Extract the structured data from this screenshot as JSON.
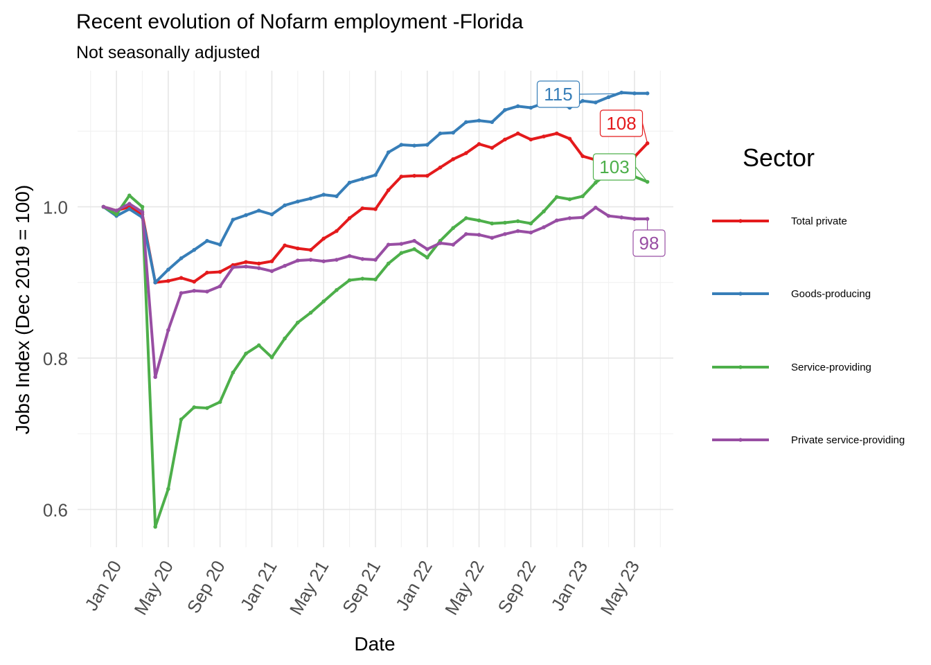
{
  "chart_data": {
    "type": "line",
    "title": "Recent evolution of Nofarm employment -Florida",
    "subtitle": "Not seasonally adjusted",
    "xlabel": "Date",
    "ylabel": "Jobs Index (Dec 2019 = 100)",
    "x_start": "2019-12",
    "x_end": "2023-06",
    "xlim": [
      "2019-10",
      "2023-08"
    ],
    "ylim": [
      0.55,
      1.18
    ],
    "x_ticks": [
      {
        "date": "2020-01",
        "label": "Jan 20"
      },
      {
        "date": "2020-05",
        "label": "May 20"
      },
      {
        "date": "2020-09",
        "label": "Sep 20"
      },
      {
        "date": "2021-01",
        "label": "Jan 21"
      },
      {
        "date": "2021-05",
        "label": "May 21"
      },
      {
        "date": "2021-09",
        "label": "Sep 21"
      },
      {
        "date": "2022-01",
        "label": "Jan 22"
      },
      {
        "date": "2022-05",
        "label": "May 22"
      },
      {
        "date": "2022-09",
        "label": "Sep 22"
      },
      {
        "date": "2023-01",
        "label": "Jan 23"
      },
      {
        "date": "2023-05",
        "label": "May 23"
      }
    ],
    "y_ticks": [
      {
        "value": 0.6,
        "label": "0.6"
      },
      {
        "value": 0.8,
        "label": "0.8"
      },
      {
        "value": 1.0,
        "label": "1.0"
      }
    ],
    "grid": true,
    "legend_title": "Sector",
    "legend_position": "right",
    "series": [
      {
        "name": "Total private",
        "color": "#E41A1C",
        "end_label": "108",
        "values": [
          1.0,
          0.995,
          1.0,
          0.99,
          0.9,
          0.902,
          0.906,
          0.901,
          0.913,
          0.914,
          0.923,
          0.927,
          0.925,
          0.928,
          0.949,
          0.945,
          0.943,
          0.958,
          0.968,
          0.985,
          0.998,
          0.997,
          1.022,
          1.04,
          1.041,
          1.041,
          1.052,
          1.063,
          1.071,
          1.083,
          1.078,
          1.089,
          1.097,
          1.089,
          1.093,
          1.097,
          1.09,
          1.067,
          1.062,
          1.063,
          1.065,
          1.066,
          1.084
        ]
      },
      {
        "name": "Goods-producing",
        "color": "#377EB8",
        "end_label": "115",
        "values": [
          1.0,
          0.988,
          0.997,
          0.986,
          0.9,
          0.917,
          0.932,
          0.943,
          0.955,
          0.95,
          0.983,
          0.989,
          0.995,
          0.99,
          1.002,
          1.007,
          1.011,
          1.016,
          1.014,
          1.032,
          1.037,
          1.042,
          1.072,
          1.082,
          1.081,
          1.082,
          1.097,
          1.098,
          1.112,
          1.114,
          1.112,
          1.128,
          1.133,
          1.131,
          1.137,
          1.139,
          1.131,
          1.14,
          1.138,
          1.145,
          1.151,
          1.15,
          1.15
        ]
      },
      {
        "name": "Service-providing",
        "color": "#4DAF4A",
        "end_label": "103",
        "values": [
          1.0,
          0.99,
          1.015,
          1.0,
          0.577,
          0.627,
          0.719,
          0.735,
          0.734,
          0.742,
          0.781,
          0.806,
          0.817,
          0.801,
          0.826,
          0.847,
          0.86,
          0.875,
          0.89,
          0.903,
          0.905,
          0.904,
          0.925,
          0.939,
          0.944,
          0.933,
          0.955,
          0.972,
          0.985,
          0.982,
          0.978,
          0.979,
          0.981,
          0.978,
          0.994,
          1.013,
          1.01,
          1.014,
          1.032,
          1.045,
          1.047,
          1.04,
          1.033
        ]
      },
      {
        "name": "Private service-providing",
        "color": "#984EA3",
        "end_label": "98",
        "values": [
          1.0,
          0.995,
          1.004,
          0.993,
          0.775,
          0.837,
          0.886,
          0.889,
          0.888,
          0.895,
          0.92,
          0.921,
          0.919,
          0.915,
          0.922,
          0.929,
          0.93,
          0.928,
          0.93,
          0.935,
          0.931,
          0.93,
          0.95,
          0.951,
          0.955,
          0.944,
          0.952,
          0.95,
          0.964,
          0.963,
          0.959,
          0.964,
          0.968,
          0.966,
          0.973,
          0.982,
          0.985,
          0.986,
          0.999,
          0.988,
          0.986,
          0.984,
          0.984
        ]
      }
    ]
  }
}
